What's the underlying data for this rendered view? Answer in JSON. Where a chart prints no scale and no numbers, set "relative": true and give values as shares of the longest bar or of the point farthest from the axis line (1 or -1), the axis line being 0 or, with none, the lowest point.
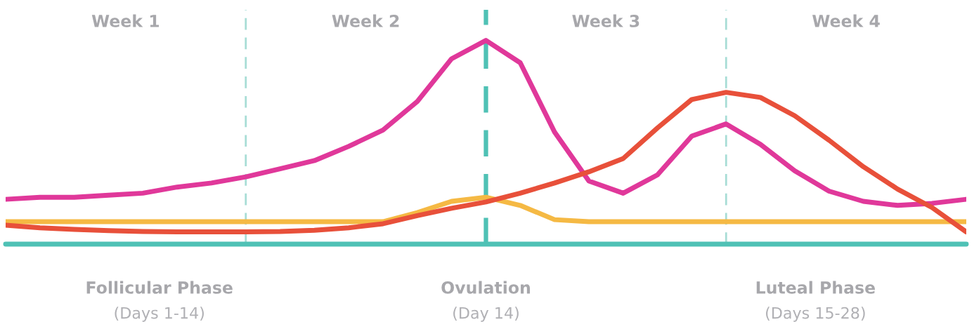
{
  "chart_data": {
    "type": "line",
    "relative": true,
    "line_style": "solid",
    "marker": "none",
    "categories": [
      null,
      null,
      null,
      null,
      null,
      null,
      null,
      null,
      null,
      null,
      null,
      null,
      null,
      null,
      null,
      null,
      null,
      null,
      null,
      null,
      null,
      null,
      null,
      null,
      null,
      null,
      null,
      null,
      null
    ],
    "series": [
      {
        "color": "#f5b944",
        "values": [
          0.11,
          0.11,
          0.11,
          0.11,
          0.11,
          0.11,
          0.11,
          0.11,
          0.11,
          0.11,
          0.11,
          0.11,
          0.155,
          0.21,
          0.23,
          0.19,
          0.12,
          0.11,
          0.11,
          0.11,
          0.11,
          0.11,
          0.11,
          0.11,
          0.11,
          0.11,
          0.11,
          0.11,
          0.11
        ]
      },
      {
        "color": "#e0389a",
        "values": [
          0.22,
          0.23,
          0.23,
          0.24,
          0.25,
          0.28,
          0.3,
          0.33,
          0.37,
          0.41,
          0.48,
          0.56,
          0.7,
          0.91,
          1.0,
          0.89,
          0.55,
          0.31,
          0.25,
          0.34,
          0.53,
          0.59,
          0.49,
          0.36,
          0.26,
          0.21,
          0.19,
          0.2,
          0.22
        ]
      },
      {
        "color": "#e8503a",
        "values": [
          0.093,
          0.08,
          0.072,
          0.066,
          0.062,
          0.06,
          0.06,
          0.06,
          0.062,
          0.068,
          0.08,
          0.1,
          0.14,
          0.176,
          0.207,
          0.25,
          0.3,
          0.355,
          0.42,
          0.57,
          0.71,
          0.745,
          0.72,
          0.63,
          0.51,
          0.38,
          0.27,
          0.18,
          0.06
        ]
      }
    ],
    "annotations": [
      "Week 1",
      "Week 2",
      "Week 3",
      "Week 4",
      "Follicular Phase",
      "(Days 1-14)",
      "Ovulation",
      "(Day 14)",
      "Luteal Phase",
      "(Days 15-28)"
    ]
  }
}
